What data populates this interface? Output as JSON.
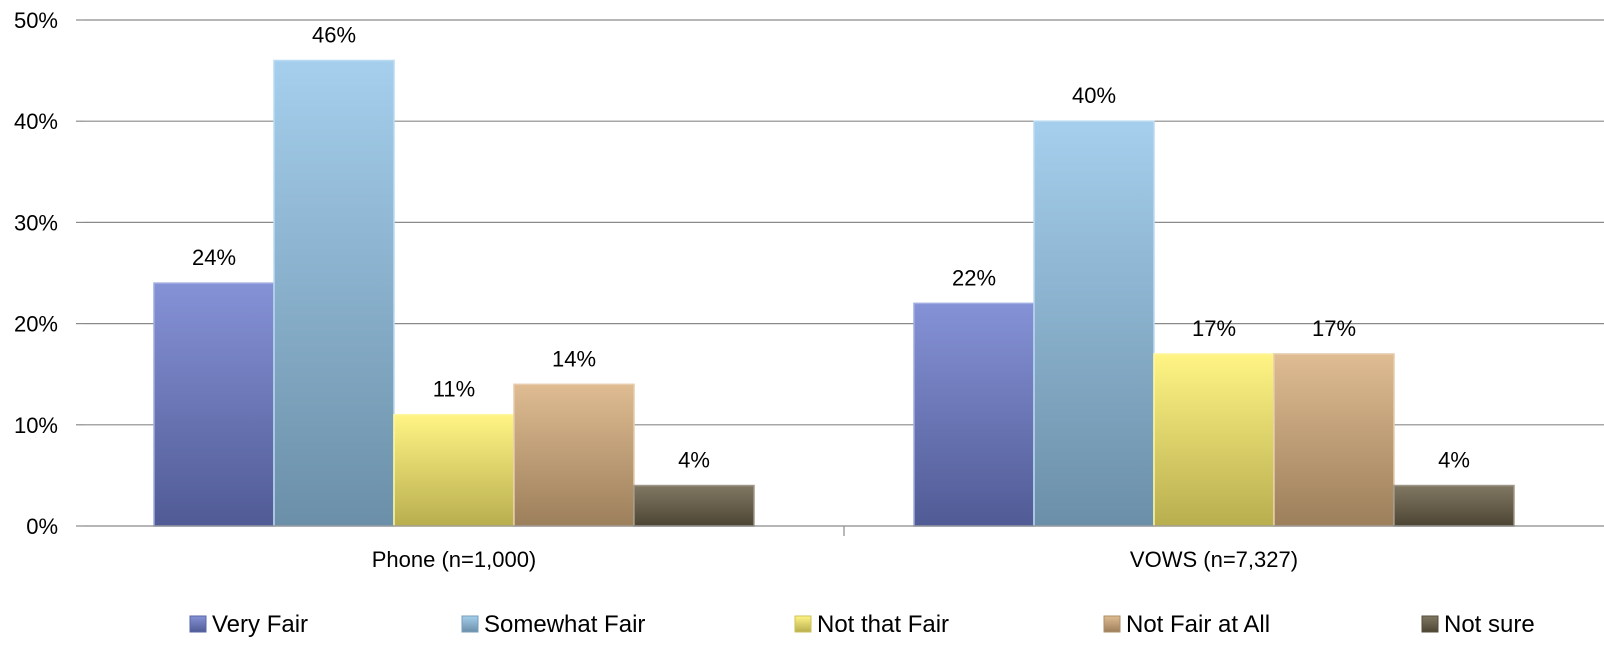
{
  "chart_data": {
    "type": "bar",
    "categories": [
      "Phone (n=1,000)",
      "VOWS (n=7,327)"
    ],
    "series": [
      {
        "name": "Very Fair",
        "values": [
          24,
          22
        ],
        "labels": [
          "24%",
          "22%"
        ],
        "color": "#6f7fcf"
      },
      {
        "name": "Somewhat Fair",
        "values": [
          46,
          40
        ],
        "labels": [
          "46%",
          "40%"
        ],
        "color": "#95c6ea"
      },
      {
        "name": "Not that Fair",
        "values": [
          11,
          17
        ],
        "labels": [
          "11%",
          "17%"
        ],
        "color": "#fff26e"
      },
      {
        "name": "Not Fair at All",
        "values": [
          14,
          17
        ],
        "labels": [
          "14%",
          "17%"
        ],
        "color": "#d9b07f"
      },
      {
        "name": "Not sure",
        "values": [
          4,
          4
        ],
        "labels": [
          "4%",
          "4%"
        ],
        "color": "#6b6048"
      }
    ],
    "yticks": [
      "0%",
      "10%",
      "20%",
      "30%",
      "40%",
      "50%"
    ],
    "ylim": [
      0,
      50
    ],
    "grid": true,
    "legend": "bottom",
    "title": "",
    "xlabel": "",
    "ylabel": ""
  }
}
